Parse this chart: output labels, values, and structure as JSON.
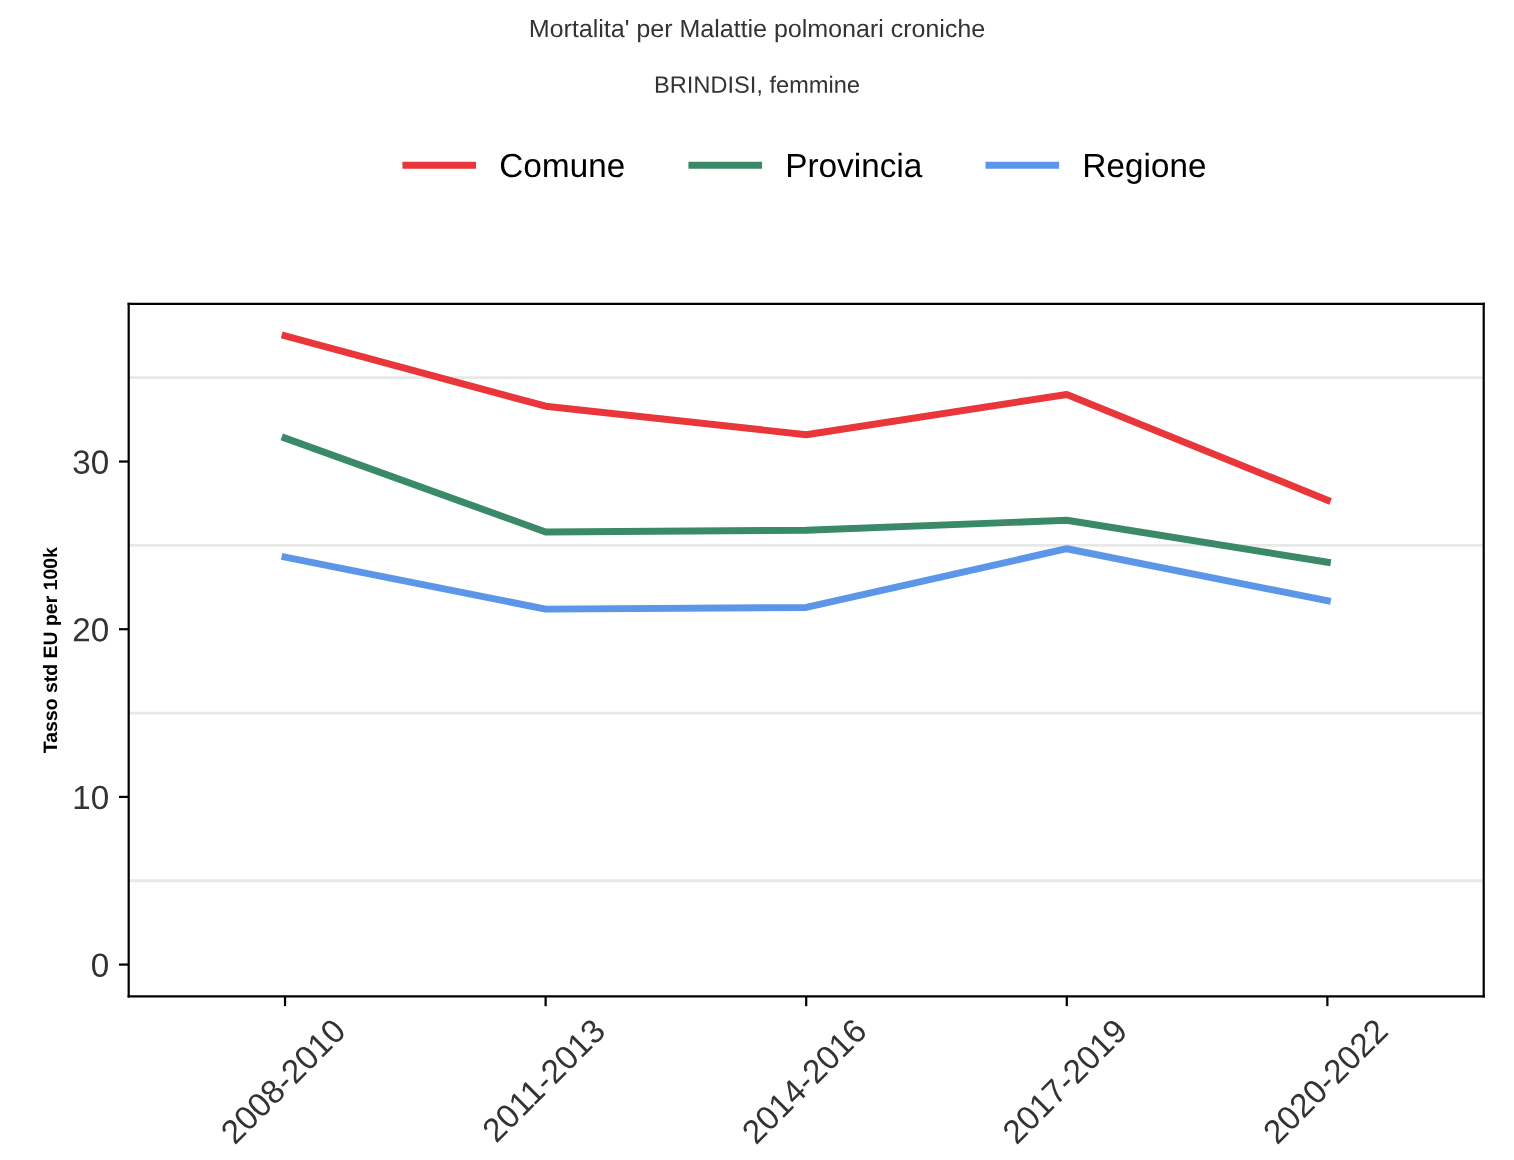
{
  "chart_data": {
    "type": "line",
    "title": "Mortalita' per Malattie polmonari croniche",
    "subtitle": "BRINDISI, femmine",
    "ylabel": "Tasso std EU per 100k",
    "categories": [
      "2008-2010",
      "2011-2013",
      "2014-2016",
      "2017-2019",
      "2020-2022"
    ],
    "series": [
      {
        "name": "Comune",
        "color": "#e8363a",
        "values": [
          37.5,
          33.3,
          31.6,
          34.0,
          27.7
        ]
      },
      {
        "name": "Provincia",
        "color": "#3a8a6a",
        "values": [
          31.4,
          25.8,
          25.9,
          26.5,
          24.0
        ]
      },
      {
        "name": "Regione",
        "color": "#5b96e8",
        "values": [
          24.3,
          21.2,
          21.3,
          24.8,
          21.7
        ]
      }
    ],
    "ylim": [
      -1.9,
      39.4
    ],
    "yticks": [
      0,
      {
        "value": 5,
        "label": null
      },
      10,
      {
        "value": 15,
        "label": null
      },
      20,
      {
        "value": 25,
        "label": null
      },
      30,
      {
        "value": 35,
        "label": null
      }
    ],
    "grid": "y",
    "legend": "top",
    "marker": "none",
    "line_style": "solid"
  }
}
